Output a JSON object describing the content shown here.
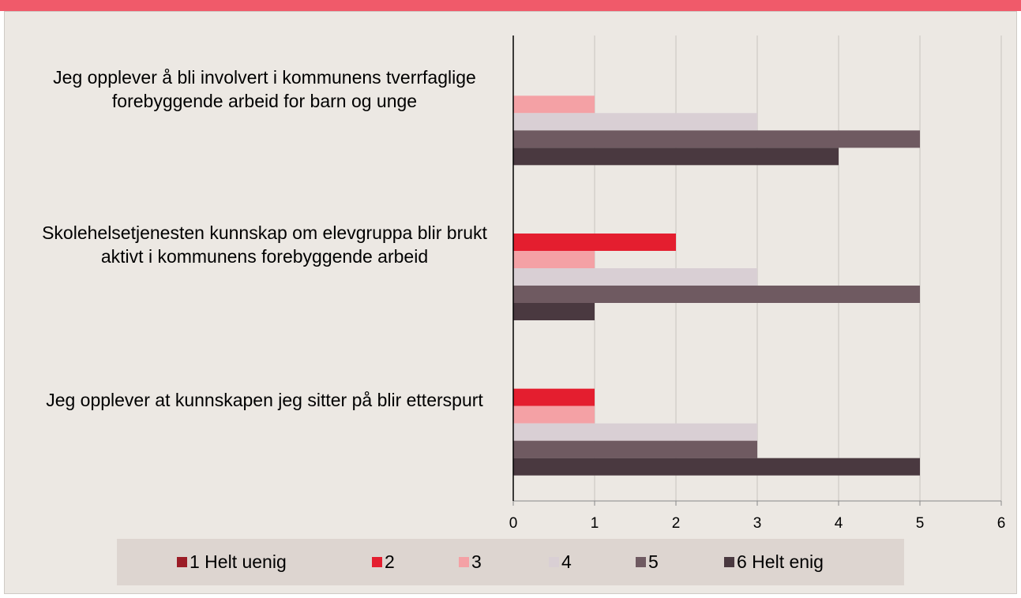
{
  "chart_data": {
    "type": "hbar",
    "categories": [
      "Jeg opplever å bli involvert i kommunens tverrfaglige forebyggende arbeid for barn og unge",
      "Skolehelsetjenesten kunnskap om elevgruppa blir brukt aktivt i kommunens forebyggende arbeid",
      "Jeg opplever at kunnskapen jeg sitter på blir etterspurt"
    ],
    "series": [
      {
        "name": "1 Helt uenig",
        "color": "#9b1c26",
        "values": [
          0,
          0,
          0
        ]
      },
      {
        "name": "2",
        "color": "#e41e2f",
        "values": [
          0,
          2,
          1
        ]
      },
      {
        "name": "3",
        "color": "#f4a1a5",
        "values": [
          1,
          1,
          1
        ]
      },
      {
        "name": "4",
        "color": "#d9cfd4",
        "values": [
          3,
          3,
          3
        ]
      },
      {
        "name": "5",
        "color": "#6f5a61",
        "values": [
          5,
          5,
          3
        ]
      },
      {
        "name": "6 Helt enig",
        "color": "#4a3940",
        "values": [
          4,
          1,
          5
        ]
      }
    ],
    "xlim": [
      0,
      6
    ],
    "xticks": [
      0,
      1,
      2,
      3,
      4,
      5,
      6
    ],
    "grid": true,
    "legend": "bottom"
  }
}
